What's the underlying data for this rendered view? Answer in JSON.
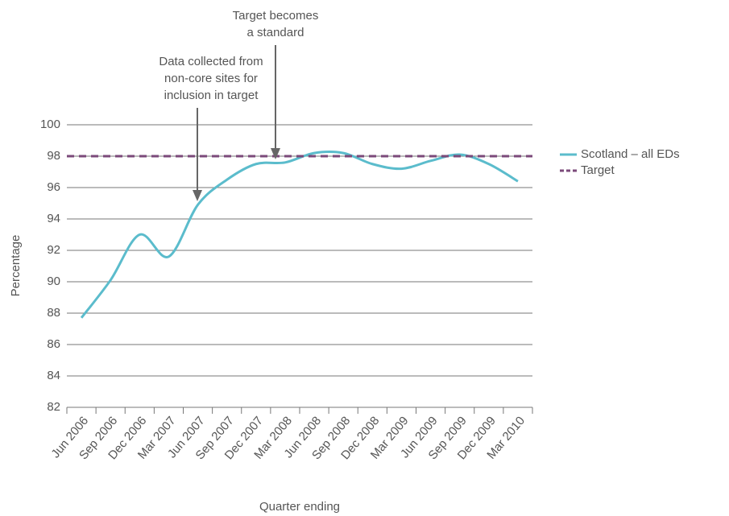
{
  "chart_data": {
    "type": "line",
    "x_label": "Quarter ending",
    "y_label": "Percentage",
    "categories": [
      "Jun 2006",
      "Sep 2006",
      "Dec 2006",
      "Mar 2007",
      "Jun 2007",
      "Sep 2007",
      "Dec 2007",
      "Mar 2008",
      "Jun 2008",
      "Sep 2008",
      "Dec 2008",
      "Mar 2009",
      "Jun 2009",
      "Sep 2009",
      "Dec 2009",
      "Mar 2010"
    ],
    "series": [
      {
        "name": "Scotland – all EDs",
        "color": "#5bbccc",
        "values": [
          87.7,
          90.1,
          93.0,
          91.6,
          94.9,
          96.5,
          97.5,
          97.6,
          98.2,
          98.2,
          97.5,
          97.2,
          97.7,
          98.1,
          97.5,
          96.4
        ]
      },
      {
        "name": "Target",
        "color": "#7b4a7a",
        "dashed": true,
        "values": [
          98,
          98,
          98,
          98,
          98,
          98,
          98,
          98,
          98,
          98,
          98,
          98,
          98,
          98,
          98,
          98
        ]
      }
    ],
    "annotations": [
      {
        "lines": [
          "Data collected from",
          "non-core sites for",
          "inclusion in target"
        ]
      },
      {
        "lines": [
          "Target becomes",
          "a standard"
        ]
      }
    ],
    "ylim": [
      82,
      100
    ],
    "yticks": [
      82,
      84,
      86,
      88,
      90,
      92,
      94,
      96,
      98,
      100
    ],
    "grid": true,
    "legend": "right"
  }
}
